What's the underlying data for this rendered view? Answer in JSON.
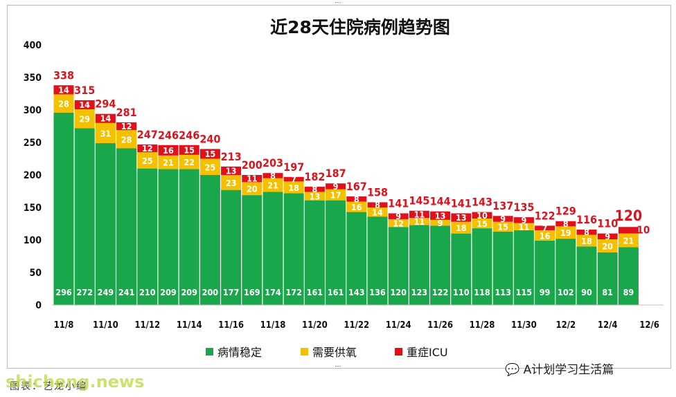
{
  "chart_data": {
    "type": "bar",
    "stacked": true,
    "title": "近28天住院病例趋势图",
    "categories": [
      "11/8",
      "11/9",
      "11/10",
      "11/11",
      "11/12",
      "11/13",
      "11/14",
      "11/15",
      "11/16",
      "11/17",
      "11/18",
      "11/19",
      "11/20",
      "11/21",
      "11/22",
      "11/23",
      "11/24",
      "11/25",
      "11/26",
      "11/27",
      "11/28",
      "11/29",
      "11/30",
      "12/1",
      "12/2",
      "12/3",
      "12/4",
      "12/5"
    ],
    "x_tick_labels": [
      "11/8",
      "11/10",
      "11/12",
      "11/14",
      "11/16",
      "11/18",
      "11/20",
      "11/22",
      "11/24",
      "11/26",
      "11/28",
      "11/30",
      "12/2",
      "12/4",
      "12/6"
    ],
    "series": [
      {
        "name": "病情稳定",
        "color": "#1aa64a",
        "values": [
          296,
          272,
          249,
          241,
          210,
          209,
          209,
          200,
          177,
          169,
          174,
          172,
          161,
          161,
          143,
          136,
          120,
          123,
          122,
          110,
          118,
          113,
          115,
          99,
          102,
          90,
          81,
          89
        ]
      },
      {
        "name": "需要供氧",
        "color": "#f5c000",
        "values": [
          28,
          29,
          31,
          28,
          25,
          21,
          22,
          25,
          23,
          20,
          21,
          18,
          13,
          17,
          16,
          14,
          12,
          11,
          9,
          18,
          15,
          15,
          11,
          16,
          19,
          18,
          20,
          21
        ]
      },
      {
        "name": "重症ICU",
        "color": "#e0111b",
        "values": [
          14,
          14,
          14,
          12,
          12,
          16,
          15,
          15,
          13,
          11,
          8,
          7,
          8,
          9,
          8,
          8,
          9,
          11,
          13,
          13,
          10,
          9,
          9,
          7,
          8,
          8,
          9,
          10
        ]
      }
    ],
    "totals": [
      338,
      315,
      294,
      281,
      247,
      246,
      246,
      240,
      213,
      200,
      203,
      197,
      182,
      187,
      167,
      158,
      141,
      145,
      144,
      141,
      143,
      137,
      135,
      122,
      129,
      116,
      110,
      120
    ],
    "ylim": [
      0,
      400
    ],
    "y_ticks": [
      0,
      50,
      100,
      150,
      200,
      250,
      300,
      350,
      400
    ],
    "xlabel": "",
    "ylabel": "",
    "legend_position": "bottom",
    "grid": false
  },
  "legend": [
    {
      "label": "病情稳定",
      "color": "#1aa64a"
    },
    {
      "label": "需要供氧",
      "color": "#f5c000"
    },
    {
      "label": "重症ICU",
      "color": "#e0111b"
    }
  ],
  "wechat_tag": "A计划学习生活篇",
  "source_label": "图表：艺龙小编",
  "watermark": "shicheng.news"
}
